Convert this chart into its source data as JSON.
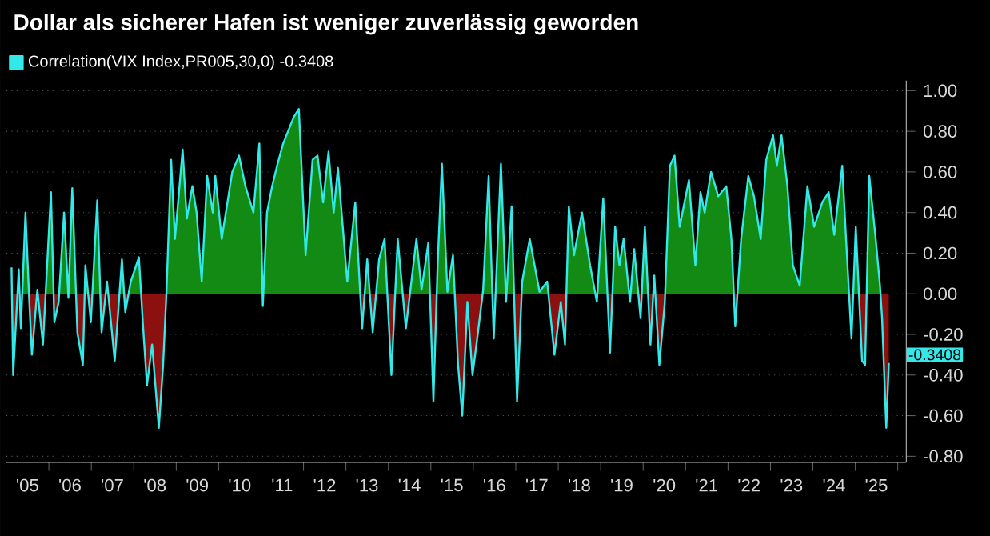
{
  "chart_data": {
    "type": "area",
    "title": "Dollar als sicherer Hafen ist weniger zuverlässig geworden",
    "series": [
      {
        "name": "Correlation(VIX Index,PR005,30,0) -0.3408",
        "color": "#33e8e8",
        "x": [
          "2005-02-14",
          "2005-02-28",
          "2005-04-17",
          "2005-05-05",
          "2005-06-14",
          "2005-07-17",
          "2005-08-08",
          "2005-09-24",
          "2005-11-11",
          "2006-01-19",
          "2006-02-17",
          "2006-03-26",
          "2006-05-12",
          "2006-06-18",
          "2006-07-21",
          "2006-09-03",
          "2006-10-20",
          "2006-11-11",
          "2006-12-28",
          "2007-02-21",
          "2007-03-30",
          "2007-05-16",
          "2007-07-21",
          "2007-09-21",
          "2007-10-20",
          "2007-12-06",
          "2008-02-14",
          "2008-03-22",
          "2008-04-24",
          "2008-06-07",
          "2008-08-04",
          "2008-09-10",
          "2008-10-09",
          "2008-11-18",
          "2008-12-21",
          "2009-02-25",
          "2009-04-02",
          "2009-05-20",
          "2009-06-25",
          "2009-08-08",
          "2009-09-24",
          "2009-11-11",
          "2009-12-03",
          "2010-01-27",
          "2010-04-28",
          "2010-06-25",
          "2010-08-19",
          "2010-10-27",
          "2010-12-17",
          "2011-01-16",
          "2011-02-21",
          "2011-04-06",
          "2011-05-23",
          "2011-07-10",
          "2011-10-09",
          "2011-11-22",
          "2012-01-19",
          "2012-03-19",
          "2012-05-01",
          "2012-06-18",
          "2012-08-04",
          "2012-09-17",
          "2012-10-24",
          "2013-01-12",
          "2013-03-22",
          "2013-05-20",
          "2013-07-03",
          "2013-08-19",
          "2013-10-13",
          "2013-11-29",
          "2014-01-27",
          "2014-03-22",
          "2014-05-31",
          "2014-08-30",
          "2014-10-13",
          "2014-12-10",
          "2015-01-23",
          "2015-02-28",
          "2015-04-06",
          "2015-05-23",
          "2015-07-10",
          "2015-08-23",
          "2015-09-28",
          "2015-11-11",
          "2015-12-25",
          "2016-02-10",
          "2016-03-26",
          "2016-05-12",
          "2016-06-25",
          "2016-08-26",
          "2016-10-09",
          "2016-11-26",
          "2017-01-12",
          "2017-02-25",
          "2017-05-01",
          "2017-07-24",
          "2017-09-28",
          "2017-11-29",
          "2018-01-23",
          "2018-02-28",
          "2018-04-02",
          "2018-05-16",
          "2018-07-24",
          "2018-10-02",
          "2018-11-29",
          "2019-01-23",
          "2019-03-22",
          "2019-05-05",
          "2019-06-11",
          "2019-07-17",
          "2019-09-10",
          "2019-10-16",
          "2019-12-10",
          "2020-01-16",
          "2020-03-04",
          "2020-04-06",
          "2020-05-20",
          "2020-07-06",
          "2020-08-19",
          "2020-09-28",
          "2020-11-11",
          "2021-01-30",
          "2021-03-26",
          "2021-05-09",
          "2021-06-14",
          "2021-08-08",
          "2021-10-09",
          "2021-12-17",
          "2022-01-30",
          "2022-03-04",
          "2022-04-24",
          "2022-06-25",
          "2022-08-12",
          "2022-10-09",
          "2022-11-26",
          "2023-01-23",
          "2023-02-25",
          "2023-04-06",
          "2023-05-27",
          "2023-07-13",
          "2023-09-10",
          "2023-11-15",
          "2024-01-12",
          "2024-03-22",
          "2024-05-16",
          "2024-07-03",
          "2024-09-10",
          "2024-10-13",
          "2024-11-29",
          "2025-01-05",
          "2025-02-28",
          "2025-03-26",
          "2025-05-01",
          "2025-06-25",
          "2025-08-01",
          "2025-08-19",
          "2025-09-24",
          "2025-10-16"
        ],
        "values": [
          0.13,
          -0.4,
          0.12,
          -0.17,
          0.4,
          -0.04,
          -0.3,
          0.02,
          -0.25,
          0.5,
          -0.14,
          -0.04,
          0.4,
          -0.02,
          0.52,
          -0.19,
          -0.35,
          0.14,
          -0.14,
          0.46,
          -0.19,
          0.06,
          -0.33,
          0.17,
          -0.09,
          0.06,
          0.18,
          -0.17,
          -0.45,
          -0.25,
          -0.66,
          -0.35,
          0.01,
          0.66,
          0.27,
          0.71,
          0.37,
          0.53,
          0.4,
          0.06,
          0.58,
          0.4,
          0.58,
          0.27,
          0.6,
          0.68,
          0.53,
          0.4,
          0.74,
          -0.06,
          0.4,
          0.53,
          0.64,
          0.74,
          0.87,
          0.91,
          0.19,
          0.66,
          0.68,
          0.45,
          0.7,
          0.4,
          0.62,
          0.06,
          0.45,
          -0.17,
          0.17,
          -0.19,
          0.17,
          0.27,
          -0.4,
          0.27,
          -0.17,
          0.27,
          0.02,
          0.25,
          -0.53,
          0.14,
          0.64,
          0.01,
          0.19,
          -0.35,
          -0.6,
          -0.04,
          -0.4,
          -0.19,
          0.02,
          0.58,
          -0.22,
          0.64,
          -0.04,
          0.43,
          -0.53,
          0.06,
          0.27,
          0.01,
          0.06,
          -0.3,
          -0.04,
          -0.25,
          0.43,
          0.19,
          0.4,
          0.14,
          -0.04,
          0.47,
          -0.29,
          0.33,
          0.14,
          0.27,
          -0.04,
          0.22,
          -0.12,
          0.33,
          -0.25,
          0.09,
          -0.35,
          -0.04,
          0.63,
          0.68,
          0.33,
          0.56,
          0.14,
          0.5,
          0.4,
          0.6,
          0.48,
          0.53,
          0.27,
          -0.16,
          0.27,
          0.58,
          0.48,
          0.27,
          0.66,
          0.78,
          0.63,
          0.78,
          0.53,
          0.14,
          0.04,
          0.53,
          0.33,
          0.45,
          0.5,
          0.29,
          0.63,
          0.27,
          -0.22,
          0.33,
          -0.33,
          -0.35,
          0.58,
          0.27,
          0.04,
          -0.12,
          -0.66,
          -0.3408
        ]
      }
    ],
    "annotations": [
      "-0.3408"
    ],
    "xlim": [
      "2005-01-01",
      "2026-03-15"
    ],
    "xticks": [
      {
        "value": "2005-07-01",
        "label": "'05"
      },
      {
        "value": "2006-07-01",
        "label": "'06"
      },
      {
        "value": "2007-07-01",
        "label": "'07"
      },
      {
        "value": "2008-07-01",
        "label": "'08"
      },
      {
        "value": "2009-07-01",
        "label": "'09"
      },
      {
        "value": "2010-07-01",
        "label": "'10"
      },
      {
        "value": "2011-07-01",
        "label": "'11"
      },
      {
        "value": "2012-07-01",
        "label": "'12"
      },
      {
        "value": "2013-07-01",
        "label": "'13"
      },
      {
        "value": "2014-07-01",
        "label": "'14"
      },
      {
        "value": "2015-07-01",
        "label": "'15"
      },
      {
        "value": "2016-07-01",
        "label": "'16"
      },
      {
        "value": "2017-07-01",
        "label": "'17"
      },
      {
        "value": "2018-07-01",
        "label": "'18"
      },
      {
        "value": "2019-07-01",
        "label": "'19"
      },
      {
        "value": "2020-07-01",
        "label": "'20"
      },
      {
        "value": "2021-07-01",
        "label": "'21"
      },
      {
        "value": "2022-07-01",
        "label": "'22"
      },
      {
        "value": "2023-07-01",
        "label": "'23"
      },
      {
        "value": "2024-07-01",
        "label": "'24"
      },
      {
        "value": "2025-07-01",
        "label": "'25"
      },
      {
        "value": "2006-01-01",
        "label": null
      },
      {
        "value": "2007-01-01",
        "label": null
      },
      {
        "value": "2008-01-01",
        "label": null
      },
      {
        "value": "2009-01-01",
        "label": null
      },
      {
        "value": "2010-01-01",
        "label": null
      },
      {
        "value": "2011-01-01",
        "label": null
      },
      {
        "value": "2012-01-01",
        "label": null
      },
      {
        "value": "2013-01-01",
        "label": null
      },
      {
        "value": "2014-01-01",
        "label": null
      },
      {
        "value": "2015-01-01",
        "label": null
      },
      {
        "value": "2016-01-01",
        "label": null
      },
      {
        "value": "2017-01-01",
        "label": null
      },
      {
        "value": "2018-01-01",
        "label": null
      },
      {
        "value": "2019-01-01",
        "label": null
      },
      {
        "value": "2020-01-01",
        "label": null
      },
      {
        "value": "2021-01-01",
        "label": null
      },
      {
        "value": "2022-01-01",
        "label": null
      },
      {
        "value": "2023-01-01",
        "label": null
      },
      {
        "value": "2024-01-01",
        "label": null
      },
      {
        "value": "2025-01-01",
        "label": null
      },
      {
        "value": "2026-01-01",
        "label": null
      }
    ],
    "ylim": [
      -0.83,
      1.05
    ],
    "yticks": [
      {
        "value": 1,
        "label": "1.00"
      },
      {
        "value": 0.8,
        "label": "0.80"
      },
      {
        "value": 0.6,
        "label": "0.60"
      },
      {
        "value": 0.4,
        "label": "0.40"
      },
      {
        "value": 0.2,
        "label": "0.20"
      },
      {
        "value": 0,
        "label": "0.00"
      },
      {
        "value": -0.2,
        "label": "-0.20"
      },
      {
        "value": -0.4,
        "label": "-0.40"
      },
      {
        "value": -0.6,
        "label": "-0.60"
      },
      {
        "value": -0.8,
        "label": "-0.80"
      }
    ],
    "grid": "y",
    "legend": "top left"
  }
}
